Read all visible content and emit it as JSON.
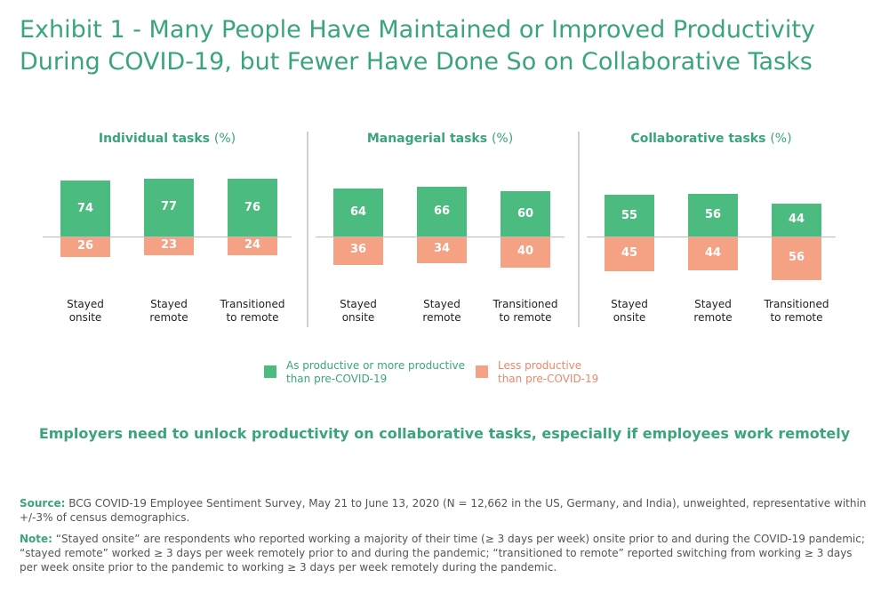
{
  "title": "Exhibit 1 - Many People Have Maintained or Improved Productivity During COVID-19, but Fewer Have Done So on Collaborative Tasks",
  "colors": {
    "positive": "#4cbb7f",
    "negative": "#f4a283",
    "accent": "#3aa57b"
  },
  "chart_data": [
    {
      "type": "bar",
      "title": "Individual tasks",
      "unit": "(%)",
      "categories": [
        "Stayed onsite",
        "Stayed remote",
        "Transitioned to remote"
      ],
      "series": [
        {
          "name": "As productive or more productive than pre-COVID-19",
          "values": [
            74,
            77,
            76
          ]
        },
        {
          "name": "Less productive than pre-COVID-19",
          "values": [
            26,
            23,
            24
          ]
        }
      ]
    },
    {
      "type": "bar",
      "title": "Managerial tasks",
      "unit": "(%)",
      "categories": [
        "Stayed onsite",
        "Stayed remote",
        "Transitioned to remote"
      ],
      "series": [
        {
          "name": "As productive or more productive than pre-COVID-19",
          "values": [
            64,
            66,
            60
          ]
        },
        {
          "name": "Less productive than pre-COVID-19",
          "values": [
            36,
            34,
            40
          ]
        }
      ]
    },
    {
      "type": "bar",
      "title": "Collaborative tasks",
      "unit": "(%)",
      "categories": [
        "Stayed onsite",
        "Stayed remote",
        "Transitioned to remote"
      ],
      "series": [
        {
          "name": "As productive or more productive than pre-COVID-19",
          "values": [
            55,
            56,
            44
          ]
        },
        {
          "name": "Less productive than pre-COVID-19",
          "values": [
            45,
            44,
            56
          ]
        }
      ]
    }
  ],
  "categories_display": [
    [
      "Stayed",
      "onsite"
    ],
    [
      "Stayed",
      "remote"
    ],
    [
      "Transitioned",
      "to remote"
    ]
  ],
  "legend": {
    "positive": [
      "As productive or more productive",
      "than pre-COVID-19"
    ],
    "negative": [
      "Less productive",
      "than pre-COVID-19"
    ]
  },
  "callout": "Employers need to unlock productivity on collaborative tasks, especially if employees work remotely",
  "source": {
    "label": "Source:",
    "text": " BCG COVID-19 Employee Sentiment Survey, May 21 to June 13, 2020 (N = 12,662 in the US, Germany, and India), unweighted, representative within +/-3% of census demographics."
  },
  "note": {
    "label": "Note:",
    "text": " “Stayed onsite” are respondents who reported working a majority of their time (≥ 3 days per week) onsite prior to and during the COVID-19 pandemic; “stayed remote” worked ≥ 3 days per week remotely prior to and during the pandemic; “transitioned to remote” reported switching from working ≥ 3 days per week onsite prior to the pandemic to working ≥ 3 days per week remotely during the pandemic."
  }
}
